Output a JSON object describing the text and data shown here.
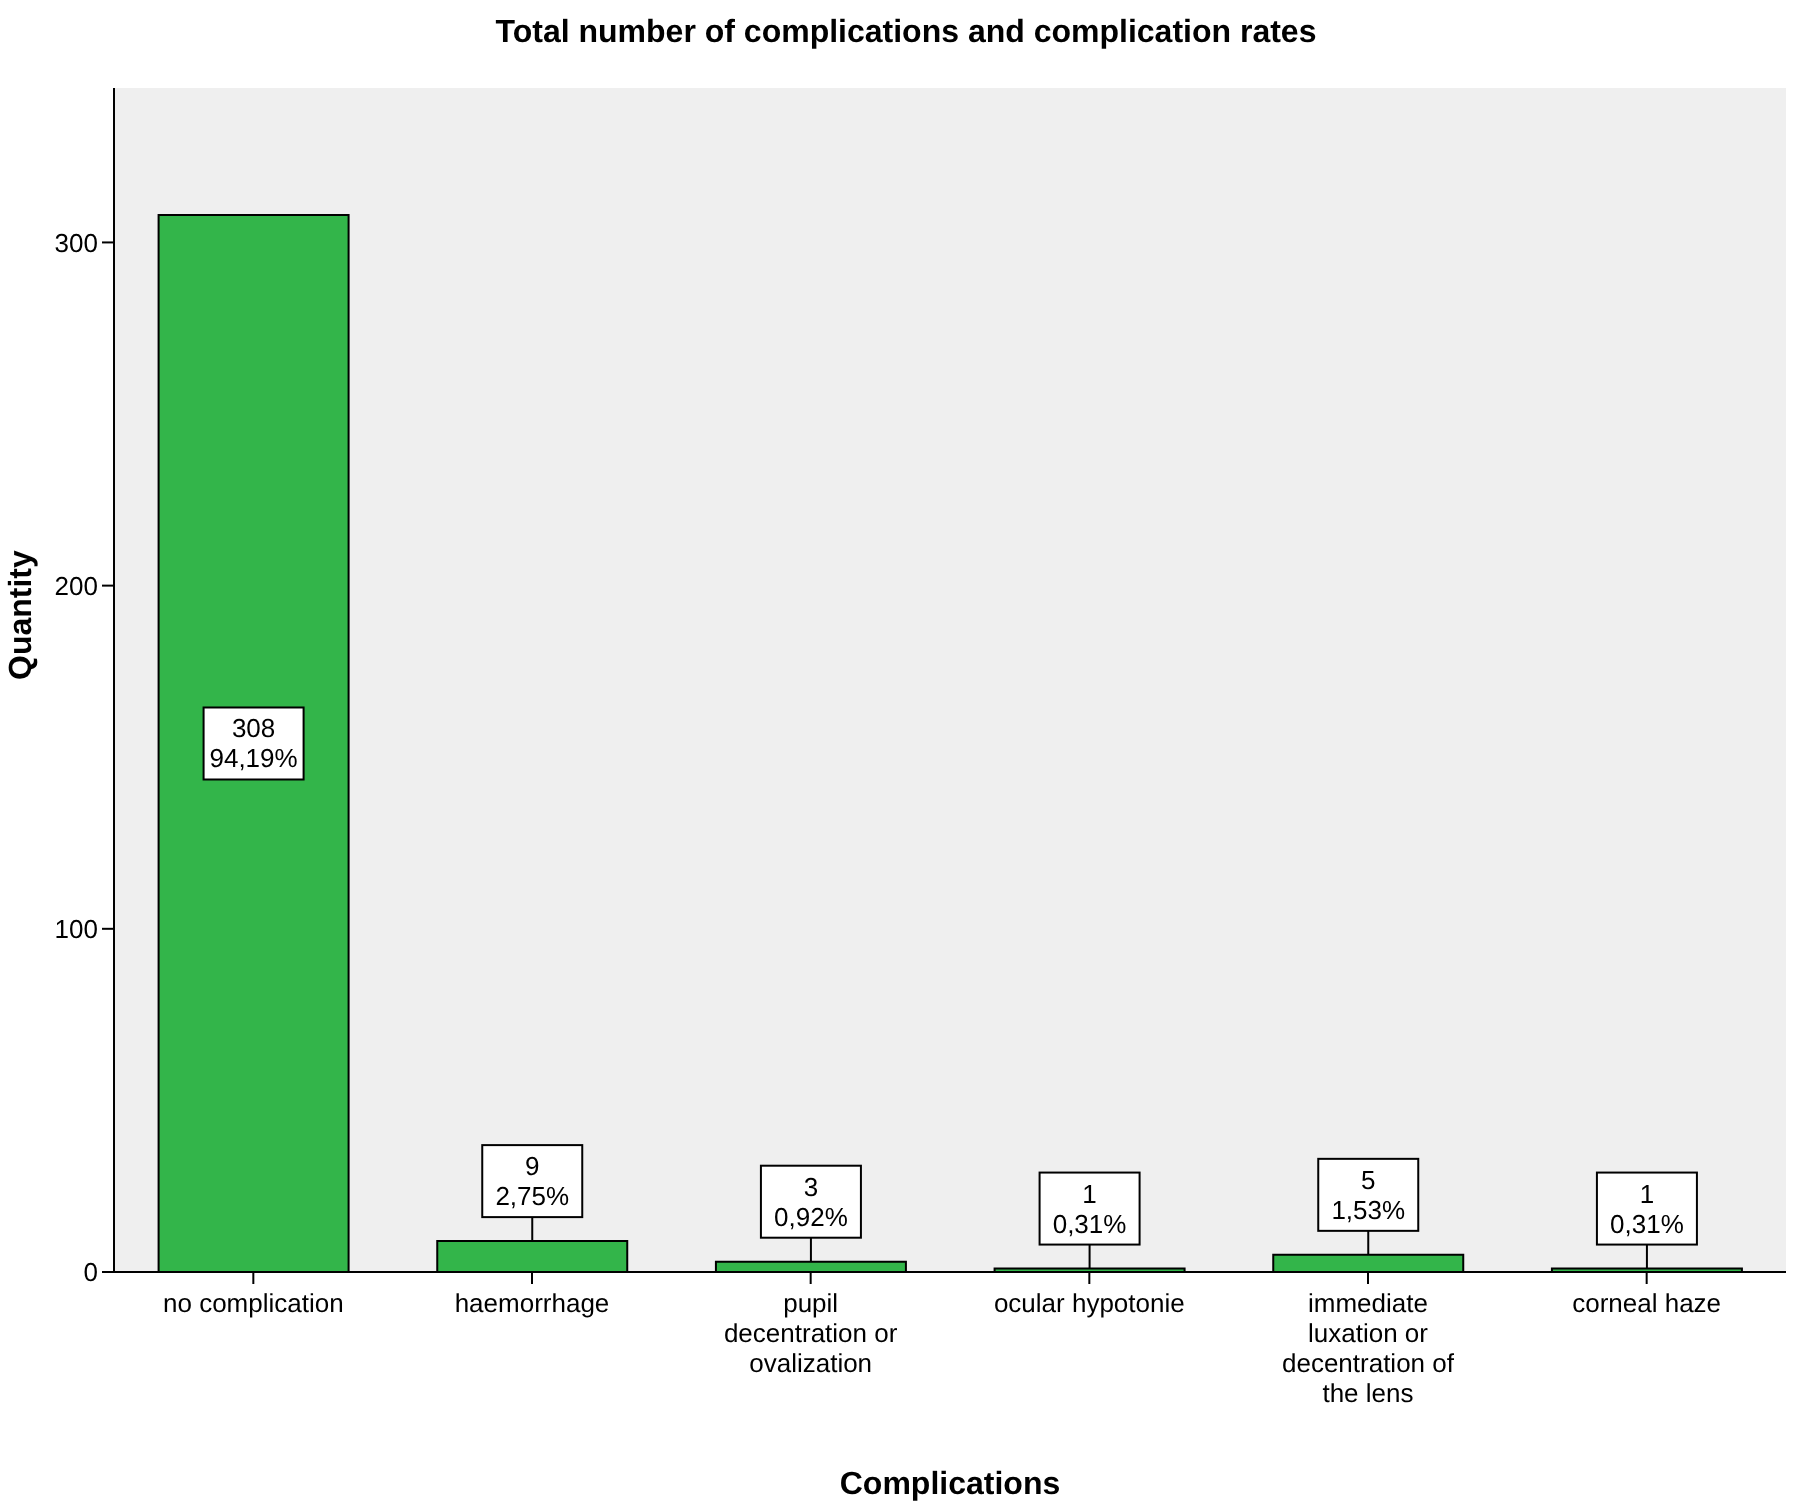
{
  "chart_data": {
    "type": "bar",
    "title": "Total number of complications and complication rates",
    "xlabel": "Complications",
    "ylabel": "Quantity",
    "categories": [
      "no complication",
      "haemorrhage",
      "pupil decentration or ovalization",
      "ocular hypotonie",
      "immediate luxation or decentration of the lens",
      "corneal haze"
    ],
    "values": [
      308,
      9,
      3,
      1,
      5,
      1
    ],
    "value_labels": [
      "308\n94,19%",
      "9\n2,75%",
      "3\n0,92%",
      "1\n0,31%",
      "5\n1,53%",
      "1\n0,31%"
    ],
    "color": "#33b54a",
    "ylim": [
      0,
      345
    ],
    "yticks": [
      0,
      100,
      200,
      300
    ],
    "grid": false,
    "legend": false
  }
}
